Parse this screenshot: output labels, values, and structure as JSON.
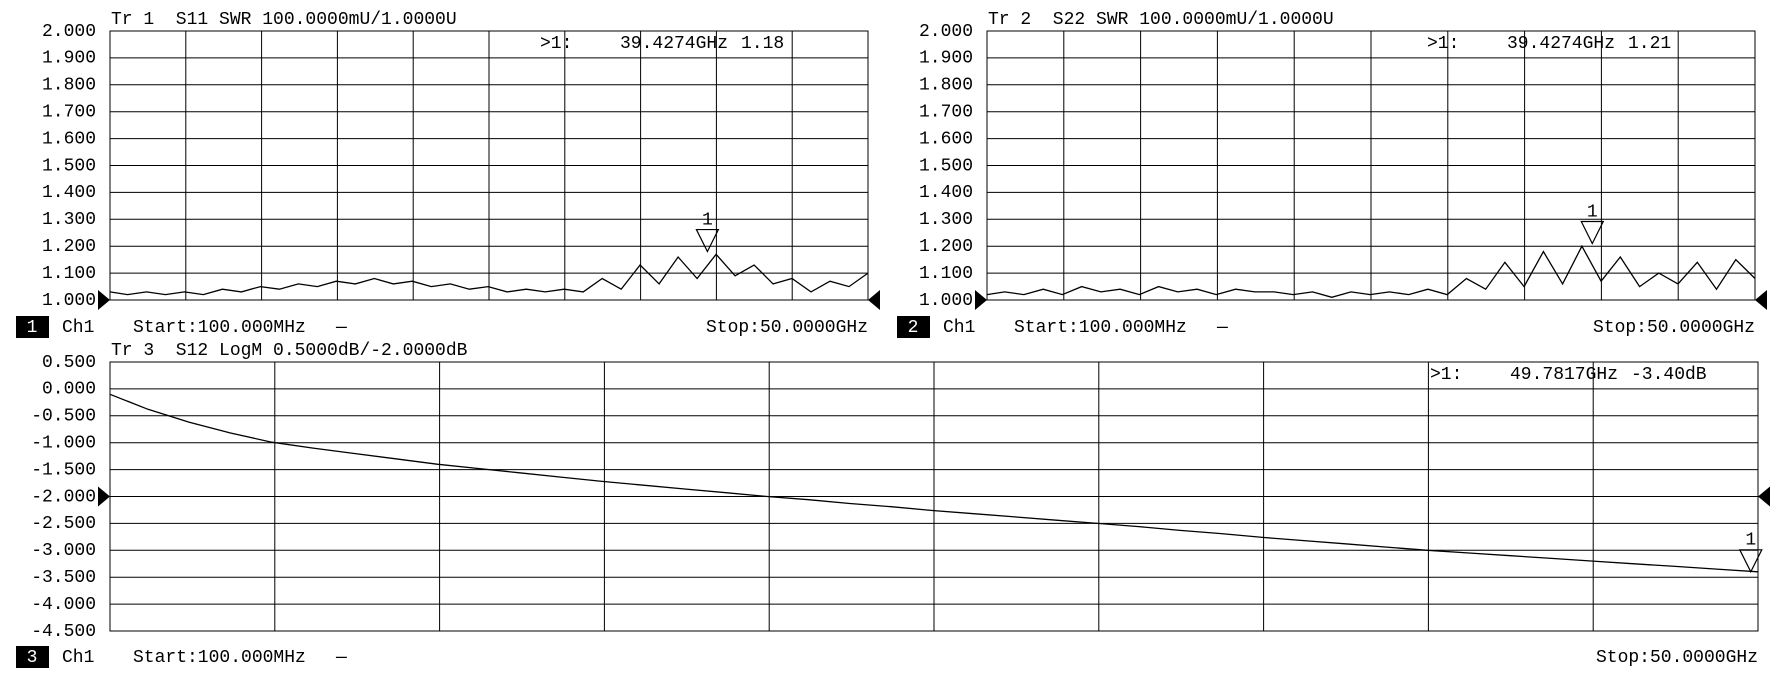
{
  "chart_data": [
    {
      "type": "line",
      "title": "Tr 1  S11 SWR 100.0000mU/1.0000U",
      "color": "#000000",
      "x": [
        0.1,
        1.25,
        2.5,
        3.75,
        5,
        6.25,
        7.5,
        8.75,
        10,
        11.25,
        12.5,
        13.75,
        15,
        16.25,
        17.5,
        18.75,
        20,
        21.25,
        22.5,
        23.75,
        25,
        26.25,
        27.5,
        28.75,
        30,
        31.25,
        32.5,
        33.75,
        35,
        36.25,
        37.5,
        38.75,
        40,
        41.25,
        42.5,
        43.75,
        45,
        46.25,
        47.5,
        48.75,
        50
      ],
      "values": [
        1.03,
        1.02,
        1.03,
        1.02,
        1.03,
        1.02,
        1.04,
        1.03,
        1.05,
        1.04,
        1.06,
        1.05,
        1.07,
        1.06,
        1.08,
        1.06,
        1.07,
        1.05,
        1.06,
        1.04,
        1.05,
        1.03,
        1.04,
        1.03,
        1.04,
        1.03,
        1.08,
        1.04,
        1.13,
        1.06,
        1.16,
        1.08,
        1.17,
        1.09,
        1.13,
        1.06,
        1.08,
        1.03,
        1.07,
        1.05,
        1.1
      ],
      "xlim": [
        0.1,
        50
      ],
      "xticks": [
        0.1,
        5.09,
        10.08,
        15.07,
        20.06,
        25.05,
        30.04,
        35.03,
        40.02,
        45.01,
        50
      ],
      "ylim": [
        1,
        2
      ],
      "yticks": [
        {
          "value": 1,
          "label": "1.000"
        },
        {
          "value": 1.1,
          "label": "1.100"
        },
        {
          "value": 1.2,
          "label": "1.200"
        },
        {
          "value": 1.3,
          "label": "1.300"
        },
        {
          "value": 1.4,
          "label": "1.400"
        },
        {
          "value": 1.5,
          "label": "1.500"
        },
        {
          "value": 1.6,
          "label": "1.600"
        },
        {
          "value": 1.7,
          "label": "1.700"
        },
        {
          "value": 1.8,
          "label": "1.800"
        },
        {
          "value": 1.9,
          "label": "1.900"
        },
        {
          "value": 2,
          "label": "2.000"
        }
      ],
      "grid": true,
      "reference": 1,
      "marker": {
        "number": "1",
        "readout_prefix": ">1:",
        "x": 39.4274,
        "x_label": "39.4274GHz",
        "value": 1.18,
        "value_label": "1.18"
      },
      "channel_number": "1",
      "channel": "Ch1",
      "start": "Start:100.000MHz",
      "sweep_symbol": "—",
      "stop": "Stop:50.0000GHz"
    },
    {
      "type": "line",
      "title": "Tr 2  S22 SWR 100.0000mU/1.0000U",
      "color": "#000000",
      "x": [
        0.1,
        1.25,
        2.5,
        3.75,
        5,
        6.25,
        7.5,
        8.75,
        10,
        11.25,
        12.5,
        13.75,
        15,
        16.25,
        17.5,
        18.75,
        20,
        21.25,
        22.5,
        23.75,
        25,
        26.25,
        27.5,
        28.75,
        30,
        31.25,
        32.5,
        33.75,
        35,
        36.25,
        37.5,
        38.75,
        40,
        41.25,
        42.5,
        43.75,
        45,
        46.25,
        47.5,
        48.75,
        50
      ],
      "values": [
        1.02,
        1.03,
        1.02,
        1.04,
        1.02,
        1.05,
        1.03,
        1.04,
        1.02,
        1.05,
        1.03,
        1.04,
        1.02,
        1.04,
        1.03,
        1.03,
        1.02,
        1.03,
        1.01,
        1.03,
        1.02,
        1.03,
        1.02,
        1.04,
        1.02,
        1.08,
        1.04,
        1.14,
        1.05,
        1.18,
        1.06,
        1.2,
        1.07,
        1.16,
        1.05,
        1.1,
        1.06,
        1.14,
        1.04,
        1.15,
        1.08
      ],
      "xlim": [
        0.1,
        50
      ],
      "xticks": [
        0.1,
        5.09,
        10.08,
        15.07,
        20.06,
        25.05,
        30.04,
        35.03,
        40.02,
        45.01,
        50
      ],
      "ylim": [
        1,
        2
      ],
      "yticks": [
        {
          "value": 1,
          "label": "1.000"
        },
        {
          "value": 1.1,
          "label": "1.100"
        },
        {
          "value": 1.2,
          "label": "1.200"
        },
        {
          "value": 1.3,
          "label": "1.300"
        },
        {
          "value": 1.4,
          "label": "1.400"
        },
        {
          "value": 1.5,
          "label": "1.500"
        },
        {
          "value": 1.6,
          "label": "1.600"
        },
        {
          "value": 1.7,
          "label": "1.700"
        },
        {
          "value": 1.8,
          "label": "1.800"
        },
        {
          "value": 1.9,
          "label": "1.900"
        },
        {
          "value": 2,
          "label": "2.000"
        }
      ],
      "grid": true,
      "reference": 1,
      "marker": {
        "number": "1",
        "readout_prefix": ">1:",
        "x": 39.4274,
        "x_label": "39.4274GHz",
        "value": 1.21,
        "value_label": "1.21"
      },
      "channel_number": "2",
      "channel": "Ch1",
      "start": "Start:100.000MHz",
      "sweep_symbol": "—",
      "stop": "Stop:50.0000GHz"
    },
    {
      "type": "line",
      "title": "Tr 3  S12 LogM 0.5000dB/-2.0000dB",
      "color": "#000000",
      "x": [
        0.1,
        1.25,
        2.5,
        3.75,
        5,
        6.25,
        7.5,
        8.75,
        10,
        11.25,
        12.5,
        13.75,
        15,
        16.25,
        17.5,
        18.75,
        20,
        21.25,
        22.5,
        23.75,
        25,
        26.25,
        27.5,
        28.75,
        30,
        31.25,
        32.5,
        33.75,
        35,
        36.25,
        37.5,
        38.75,
        40,
        41.25,
        42.5,
        43.75,
        45,
        46.25,
        47.5,
        48.75,
        50
      ],
      "values": [
        -0.1,
        -0.38,
        -0.62,
        -0.82,
        -0.99,
        -1.1,
        -1.2,
        -1.3,
        -1.4,
        -1.48,
        -1.56,
        -1.64,
        -1.72,
        -1.79,
        -1.86,
        -1.93,
        -2,
        -2.06,
        -2.13,
        -2.19,
        -2.26,
        -2.32,
        -2.38,
        -2.44,
        -2.5,
        -2.56,
        -2.63,
        -2.69,
        -2.76,
        -2.82,
        -2.88,
        -2.94,
        -3,
        -3.05,
        -3.1,
        -3.15,
        -3.2,
        -3.25,
        -3.3,
        -3.35,
        -3.4
      ],
      "xlim": [
        0.1,
        50
      ],
      "xticks": [
        0.1,
        5.09,
        10.08,
        15.07,
        20.06,
        25.05,
        30.04,
        35.03,
        40.02,
        45.01,
        50
      ],
      "ylim": [
        -4.5,
        0.5
      ],
      "yticks": [
        {
          "value": -4.5,
          "label": "-4.500"
        },
        {
          "value": -4,
          "label": "-4.000"
        },
        {
          "value": -3.5,
          "label": "-3.500"
        },
        {
          "value": -3,
          "label": "-3.000"
        },
        {
          "value": -2.5,
          "label": "-2.500"
        },
        {
          "value": -2,
          "label": "-2.000"
        },
        {
          "value": -1.5,
          "label": "-1.500"
        },
        {
          "value": -1,
          "label": "-1.000"
        },
        {
          "value": -0.5,
          "label": "-0.500"
        },
        {
          "value": 0,
          "label": "0.000"
        },
        {
          "value": 0.5,
          "label": "0.500"
        }
      ],
      "grid": true,
      "reference": -2,
      "marker": {
        "number": "1",
        "readout_prefix": ">1:",
        "x": 49.7817,
        "x_label": "49.7817GHz",
        "value": -3.4,
        "value_label": "-3.40dB"
      },
      "channel_number": "3",
      "channel": "Ch1",
      "start": "Start:100.000MHz",
      "sweep_symbol": "—",
      "stop": "Stop:50.0000GHz"
    }
  ]
}
